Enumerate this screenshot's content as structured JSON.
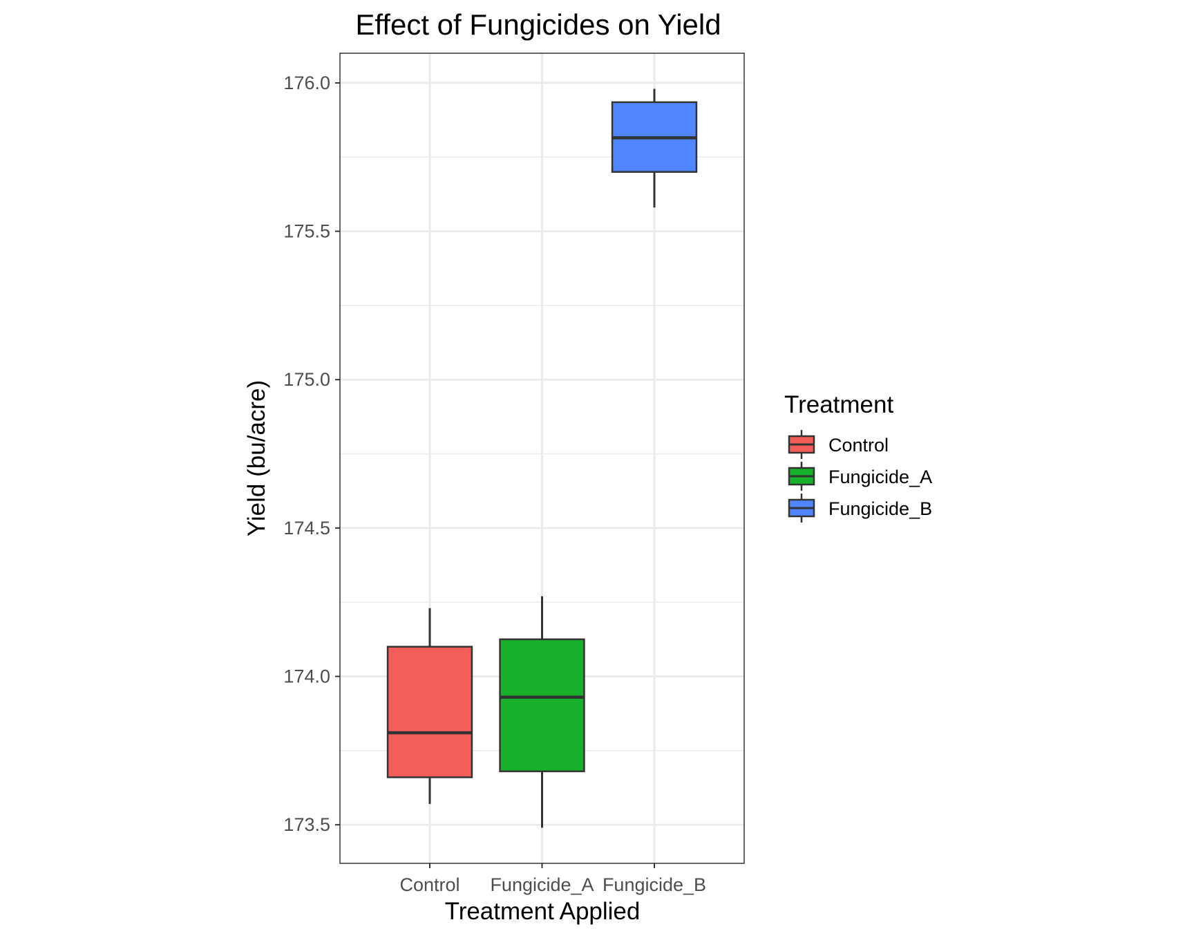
{
  "chart_data": {
    "type": "boxplot",
    "title": "Effect of Fungicides on Yield",
    "xlabel": "Treatment Applied",
    "ylabel": "Yield (bu/acre)",
    "ylim": [
      173.37,
      176.1
    ],
    "yticks": [
      173.5,
      174.0,
      174.5,
      175.0,
      175.5,
      176.0
    ],
    "ytick_labels": [
      "173.5",
      "174.0",
      "174.5",
      "175.0",
      "175.5",
      "176.0"
    ],
    "categories": [
      "Control",
      "Fungicide_A",
      "Fungicide_B"
    ],
    "grid": true,
    "legend": {
      "title": "Treatment",
      "position": "right",
      "entries": [
        "Control",
        "Fungicide_A",
        "Fungicide_B"
      ]
    },
    "series": [
      {
        "name": "Control",
        "color": "#F35E5A",
        "min": 173.57,
        "q1": 173.66,
        "median": 173.81,
        "q3": 174.1,
        "max": 174.23
      },
      {
        "name": "Fungicide_A",
        "color": "#17B12B",
        "min": 173.49,
        "q1": 173.68,
        "median": 173.93,
        "q3": 174.125,
        "max": 174.27
      },
      {
        "name": "Fungicide_B",
        "color": "#5086FF",
        "min": 175.58,
        "q1": 175.7,
        "median": 175.815,
        "q3": 175.935,
        "max": 175.98
      }
    ]
  }
}
